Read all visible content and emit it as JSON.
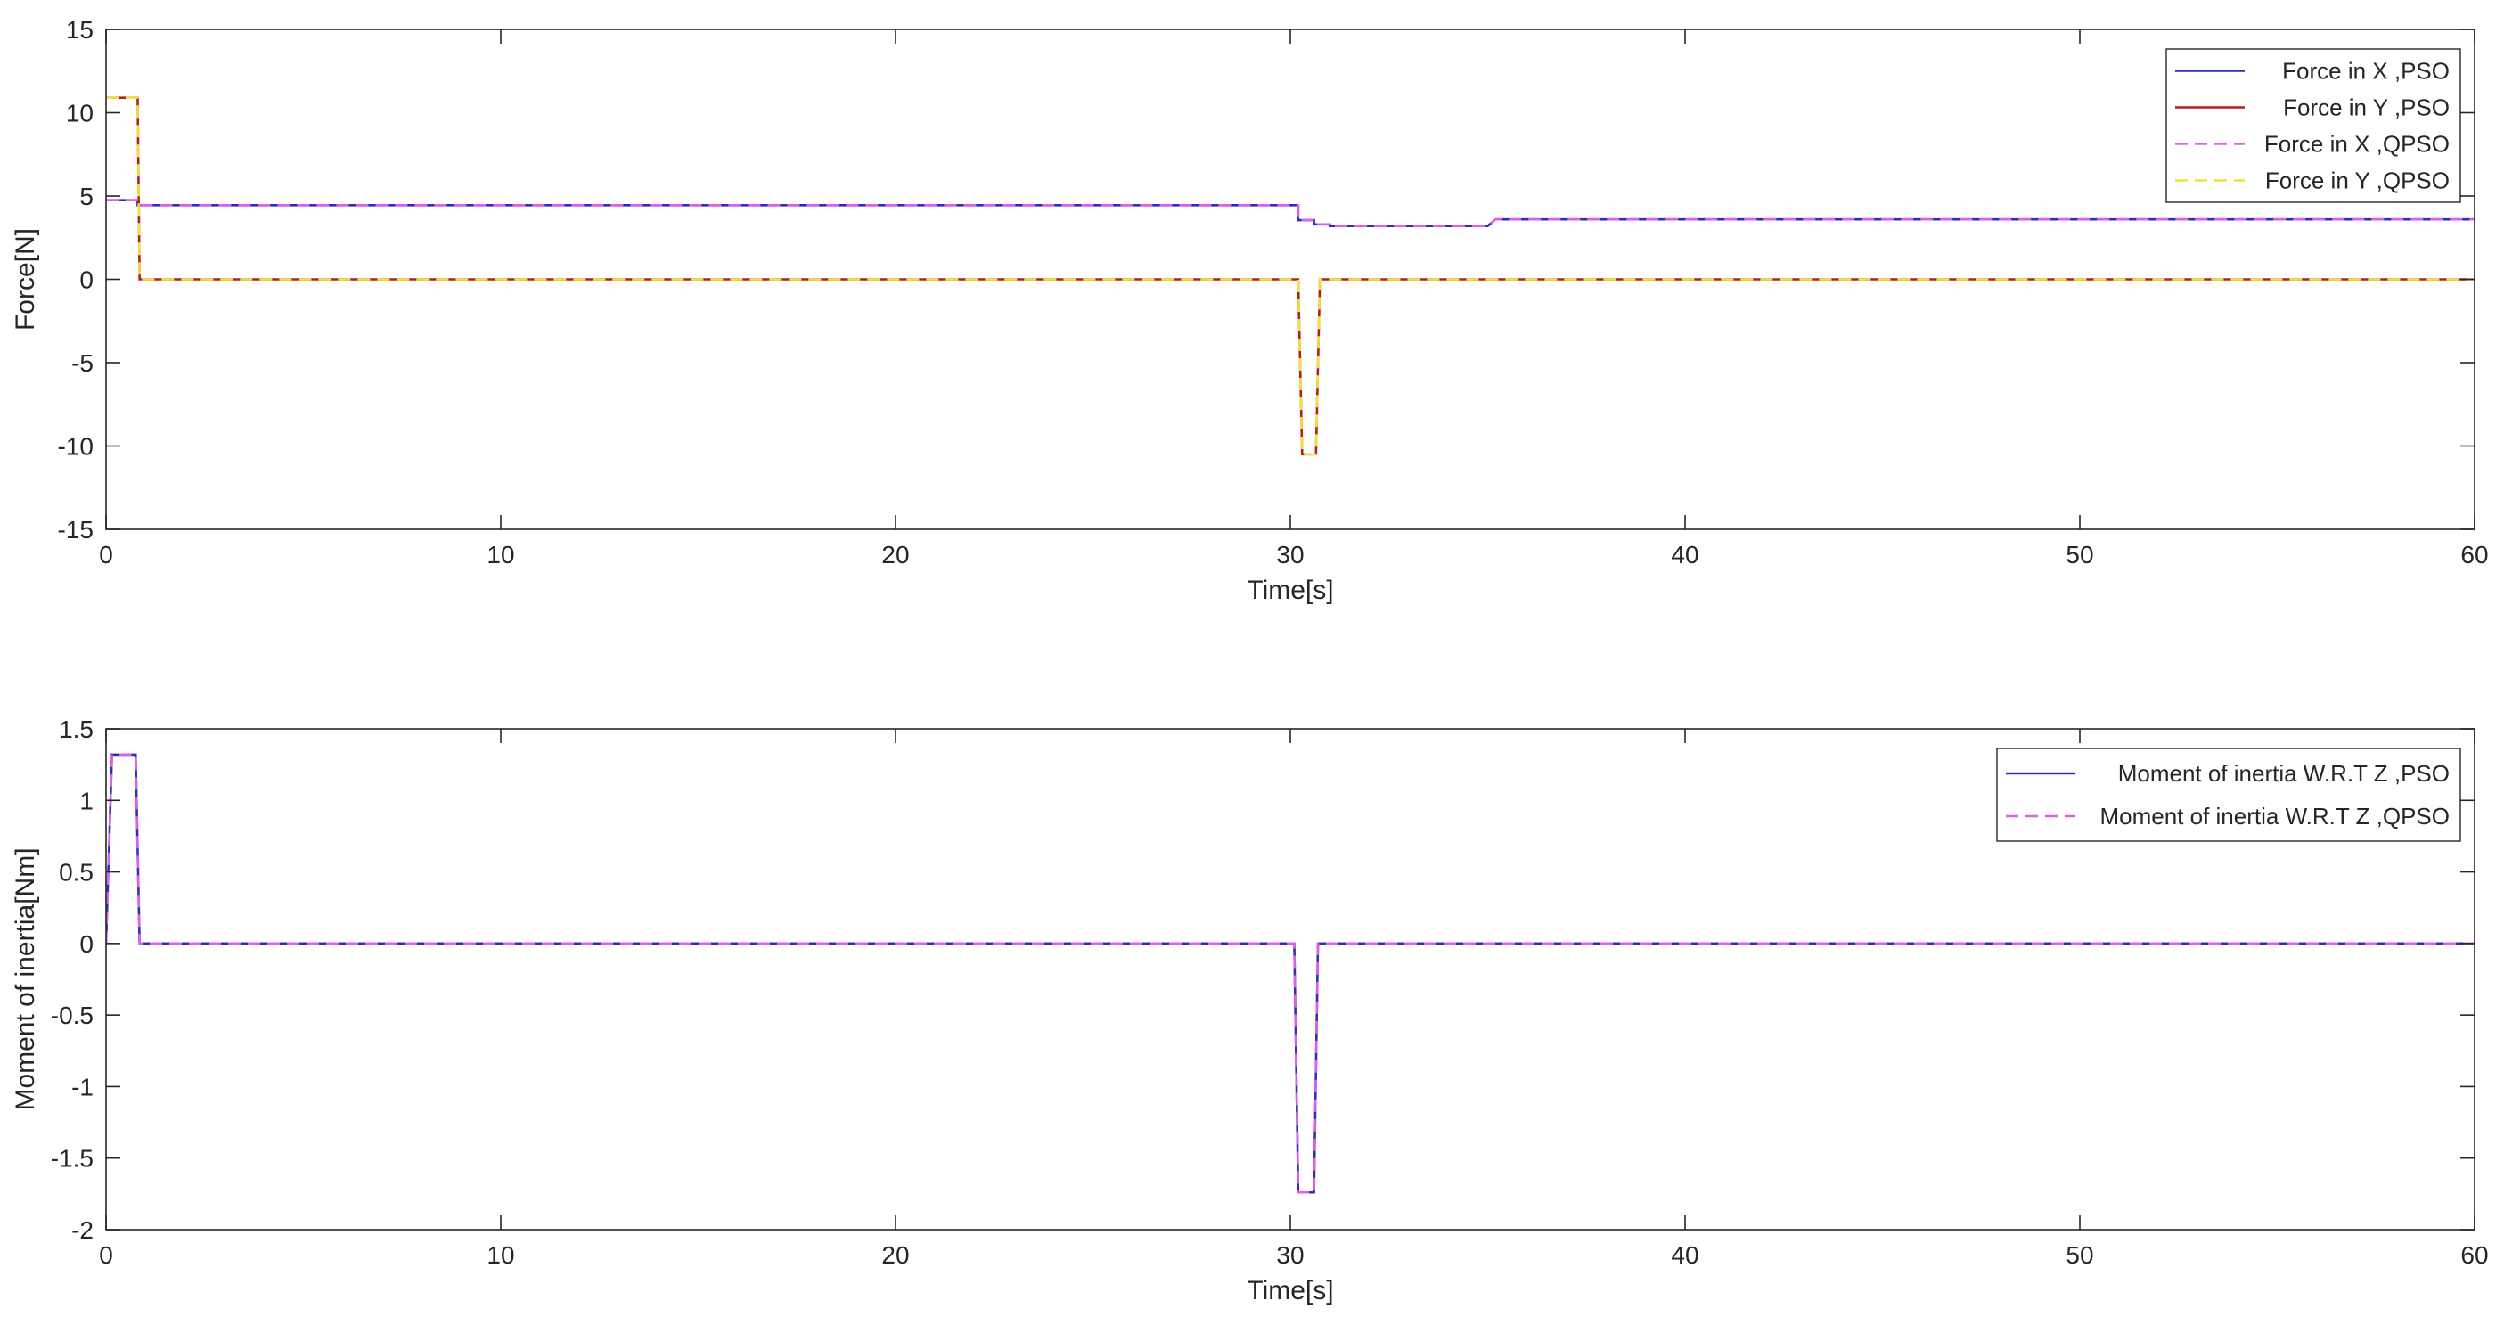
{
  "chart_data": [
    {
      "type": "line",
      "title": "",
      "xlabel": "Time[s]",
      "ylabel": "Force[N]",
      "xlim": [
        0,
        60
      ],
      "ylim": [
        -15,
        15
      ],
      "xticks": [
        0,
        10,
        20,
        30,
        40,
        50,
        60
      ],
      "yticks": [
        -15,
        -10,
        -5,
        0,
        5,
        10,
        15
      ],
      "grid": false,
      "legend": "top-right",
      "series": [
        {
          "name": "Force in X ,PSO",
          "color": "#2f2fb3",
          "dash": "solid",
          "x": [
            0,
            0.8,
            0.8,
            30.0,
            30.2,
            30.2,
            30.6,
            30.6,
            31.0,
            31.0,
            35.0,
            35.2,
            60
          ],
          "y": [
            4.75,
            4.75,
            4.45,
            4.45,
            4.45,
            3.55,
            3.55,
            3.3,
            3.3,
            3.2,
            3.2,
            3.6,
            3.6
          ]
        },
        {
          "name": "Force in Y ,PSO",
          "color": "#b02020",
          "dash": "solid",
          "x": [
            0,
            0.8,
            0.85,
            30.0,
            30.2,
            30.3,
            30.65,
            30.75,
            60
          ],
          "y": [
            10.9,
            10.9,
            0,
            0,
            0,
            -10.5,
            -10.5,
            0,
            0
          ]
        },
        {
          "name": "Force in X ,QPSO",
          "color": "#e060e0",
          "dash": "dashed",
          "x": [
            0,
            0.8,
            0.8,
            30.0,
            30.2,
            30.2,
            30.6,
            30.6,
            31.0,
            31.0,
            35.0,
            35.2,
            60
          ],
          "y": [
            4.75,
            4.75,
            4.45,
            4.45,
            4.45,
            3.55,
            3.55,
            3.3,
            3.3,
            3.2,
            3.2,
            3.6,
            3.6
          ]
        },
        {
          "name": "Force in Y ,QPSO",
          "color": "#f0e040",
          "dash": "dashed",
          "x": [
            0,
            0.8,
            0.85,
            30.0,
            30.2,
            30.3,
            30.65,
            30.75,
            60
          ],
          "y": [
            10.9,
            10.9,
            0,
            0,
            0,
            -10.5,
            -10.5,
            0,
            0
          ]
        }
      ]
    },
    {
      "type": "line",
      "title": "",
      "xlabel": "Time[s]",
      "ylabel": "Moment of inertia[Nm]",
      "xlim": [
        0,
        60
      ],
      "ylim": [
        -2,
        1.5
      ],
      "xticks": [
        0,
        10,
        20,
        30,
        40,
        50,
        60
      ],
      "yticks": [
        -2,
        -1.5,
        -1,
        -0.5,
        0,
        0.5,
        1,
        1.5
      ],
      "grid": false,
      "legend": "top-right",
      "series": [
        {
          "name": "Moment of inertia W.R.T Z ,PSO",
          "color": "#2f2fb3",
          "dash": "solid",
          "x": [
            0,
            0.15,
            0.75,
            0.85,
            30.0,
            30.1,
            30.2,
            30.6,
            30.7,
            30.8,
            60
          ],
          "y": [
            0,
            1.32,
            1.32,
            0,
            0,
            0,
            -1.74,
            -1.74,
            0,
            0,
            0
          ]
        },
        {
          "name": "Moment of inertia W.R.T Z ,QPSO",
          "color": "#e060e0",
          "dash": "dashed",
          "x": [
            0,
            0.15,
            0.75,
            0.85,
            30.0,
            30.1,
            30.2,
            30.6,
            30.7,
            30.8,
            60
          ],
          "y": [
            0,
            1.32,
            1.32,
            0,
            0,
            0,
            -1.74,
            -1.74,
            0,
            0,
            0
          ]
        }
      ]
    }
  ]
}
